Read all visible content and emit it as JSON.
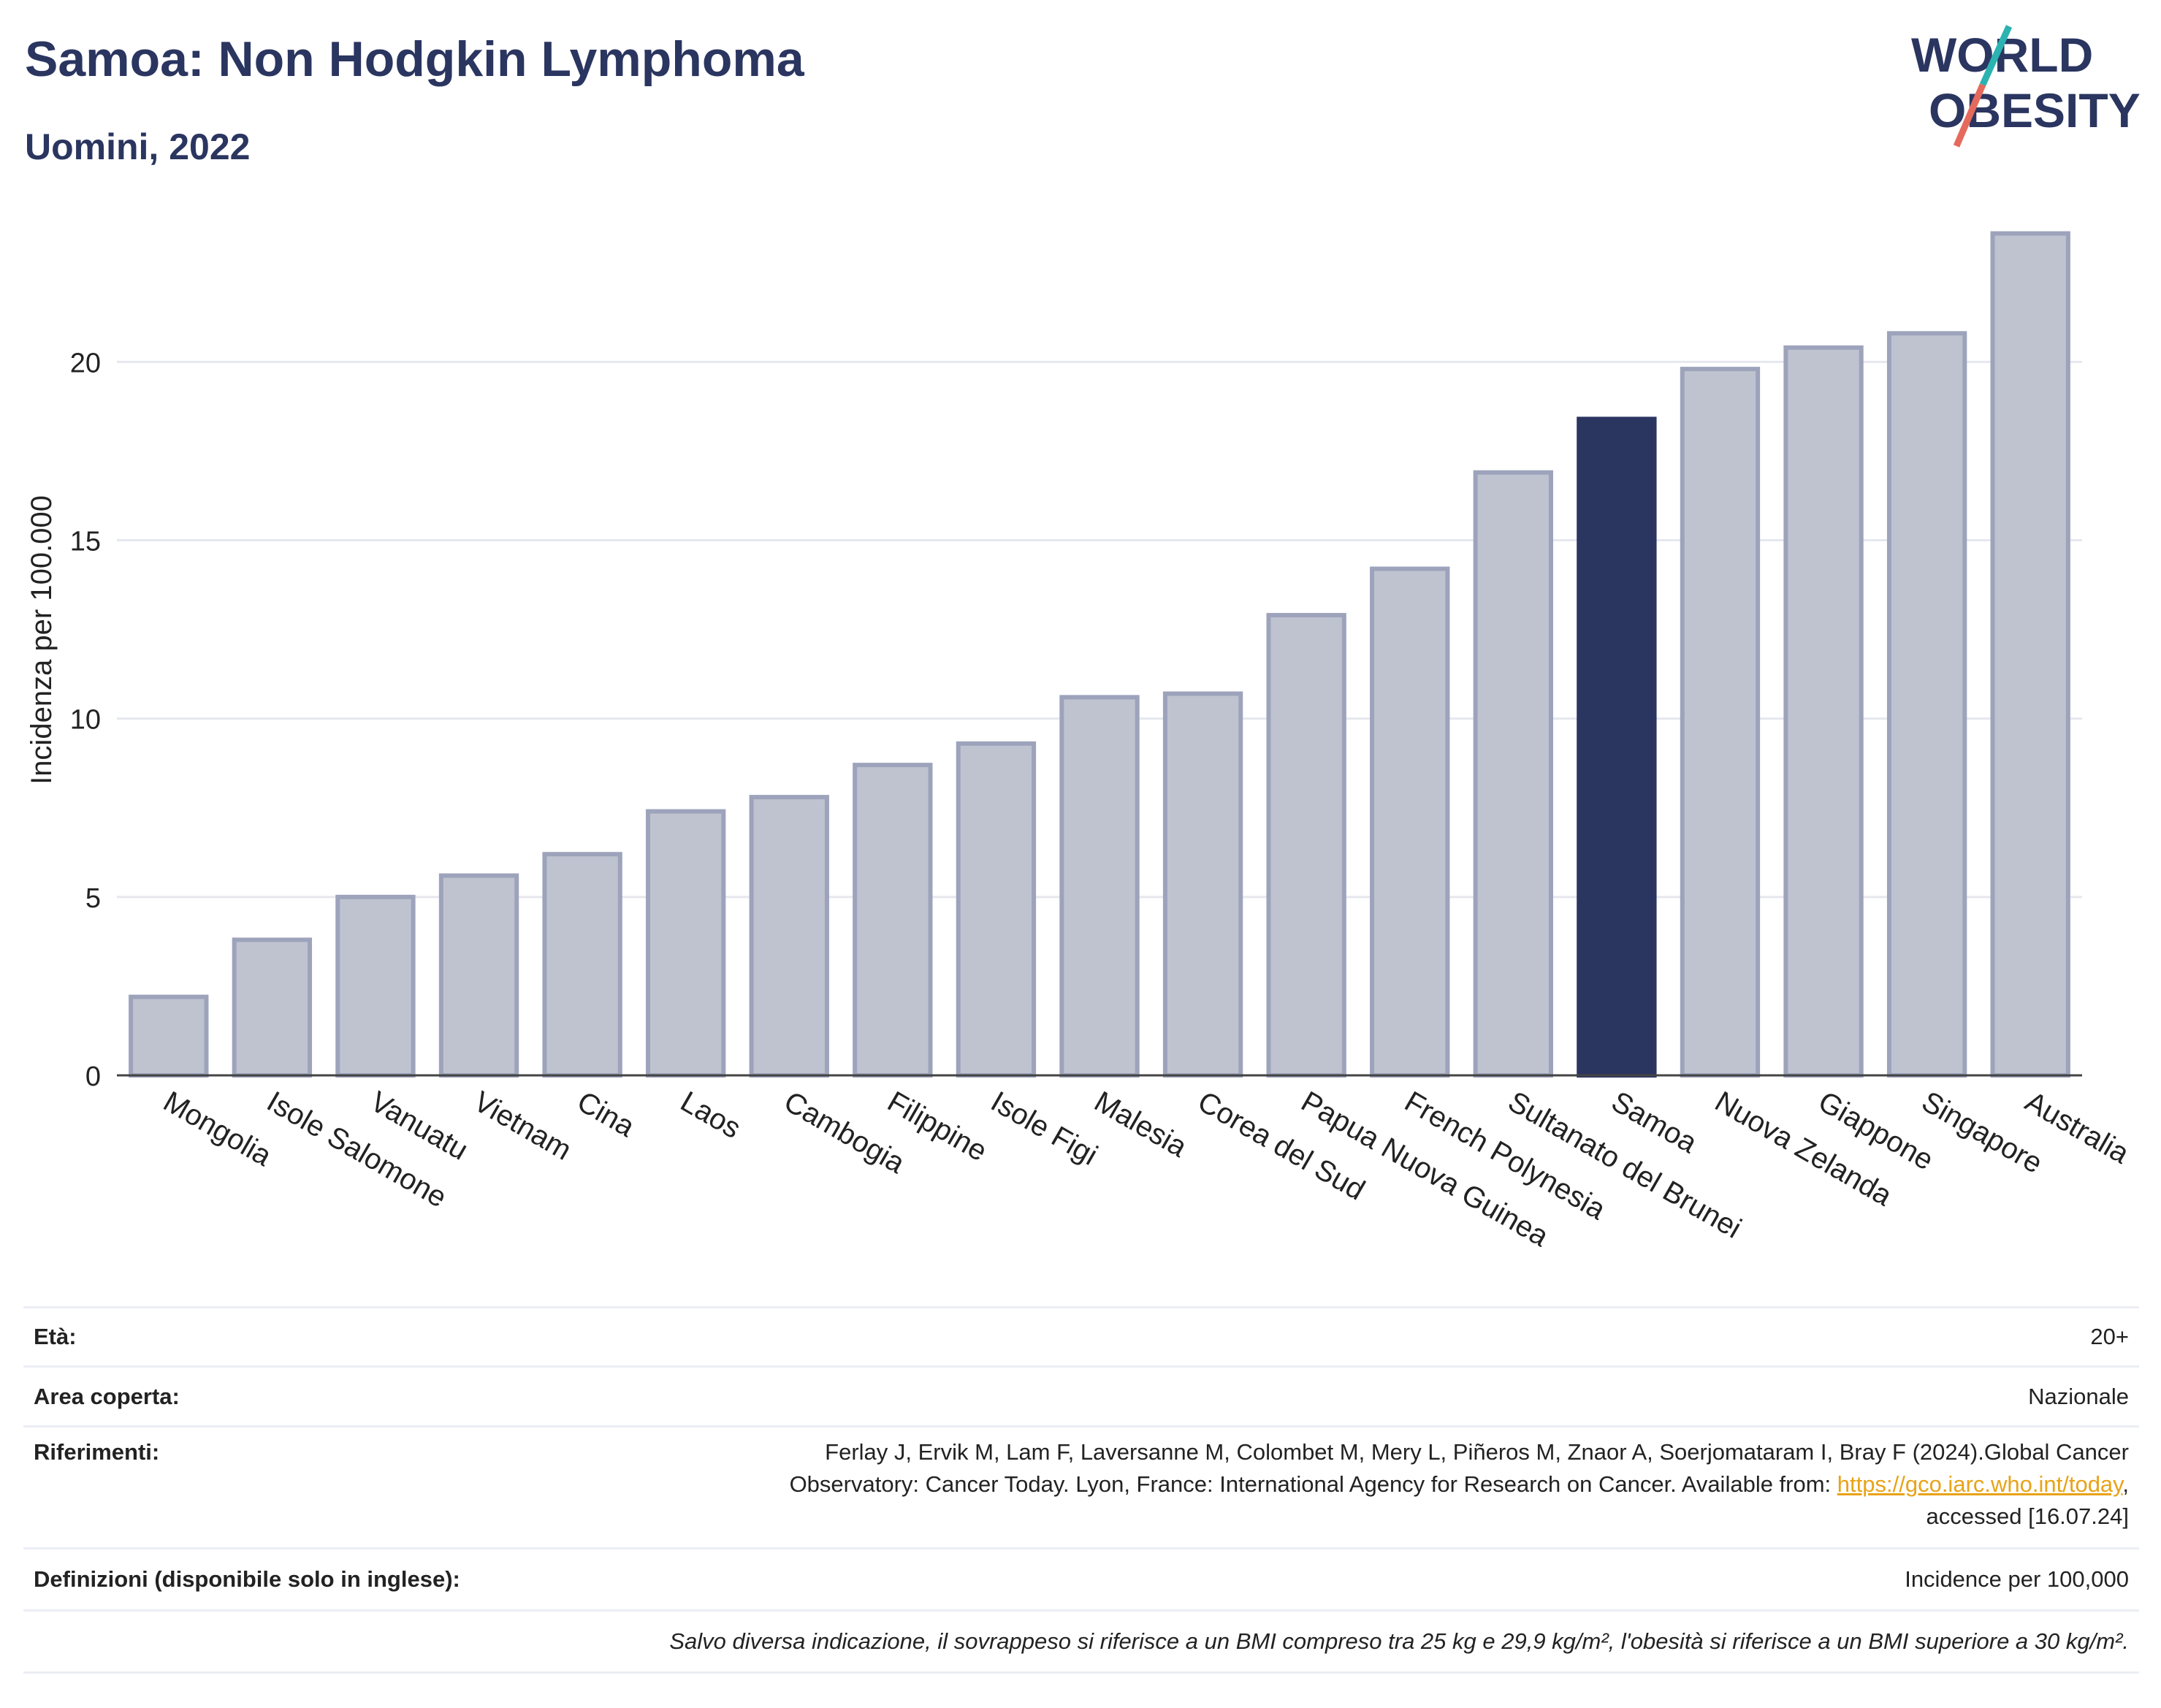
{
  "header": {
    "title": "Samoa: Non Hodgkin Lymphoma",
    "subtitle": "Uomini, 2022",
    "logo_line1": "WORLD",
    "logo_line2": "OBESITY"
  },
  "chart_data": {
    "type": "bar",
    "ylabel": "Incidenza per 100.000",
    "ylim": [
      0,
      24
    ],
    "yticks": [
      0,
      5,
      10,
      15,
      20
    ],
    "grid": true,
    "highlight": "Samoa",
    "colors": {
      "bar": "#bfc3d0",
      "bar_border": "#9da3bb",
      "highlight": "#2a3560",
      "axis": "#444444",
      "grid": "#e6e8ee"
    },
    "categories": [
      "Mongolia",
      "Isole Salomone",
      "Vanuatu",
      "Vietnam",
      "Cina",
      "Laos",
      "Cambogia",
      "Filippine",
      "Isole Figi",
      "Malesia",
      "Corea del Sud",
      "Papua Nuova Guinea",
      "French Polynesia",
      "Sultanato del Brunei",
      "Samoa",
      "Nuova Zelanda",
      "Giappone",
      "Singapore",
      "Australia"
    ],
    "values": [
      2.2,
      3.8,
      5.0,
      5.6,
      6.2,
      7.4,
      7.8,
      8.7,
      9.3,
      10.6,
      10.7,
      12.9,
      14.2,
      16.9,
      18.4,
      19.8,
      20.4,
      20.8,
      23.6
    ]
  },
  "footer": {
    "age_label": "Età:",
    "age_value": "20+",
    "area_label": "Area coperta:",
    "area_value": "Nazionale",
    "ref_label": "Riferimenti:",
    "ref_line1": "Ferlay J, Ervik M, Lam F, Laversanne M, Colombet M, Mery L, Piñeros M, Znaor A, Soerjomataram I, Bray F (2024).Global Cancer",
    "ref_line2": "Observatory: Cancer Today. Lyon, France: International Agency for Research on Cancer. Available from:",
    "ref_link": "https://gco.iarc.who.int/today",
    "ref_line3": "accessed [16.07.24]",
    "def_label": "Definizioni (disponibile solo in inglese):",
    "def_value": "Incidence per 100,000",
    "note": "Salvo diversa indicazione, il sovrappeso si riferisce a un BMI compreso tra 25 kg e 29,9 kg/m², l'obesità si riferisce a un BMI superiore a 30 kg/m²."
  }
}
